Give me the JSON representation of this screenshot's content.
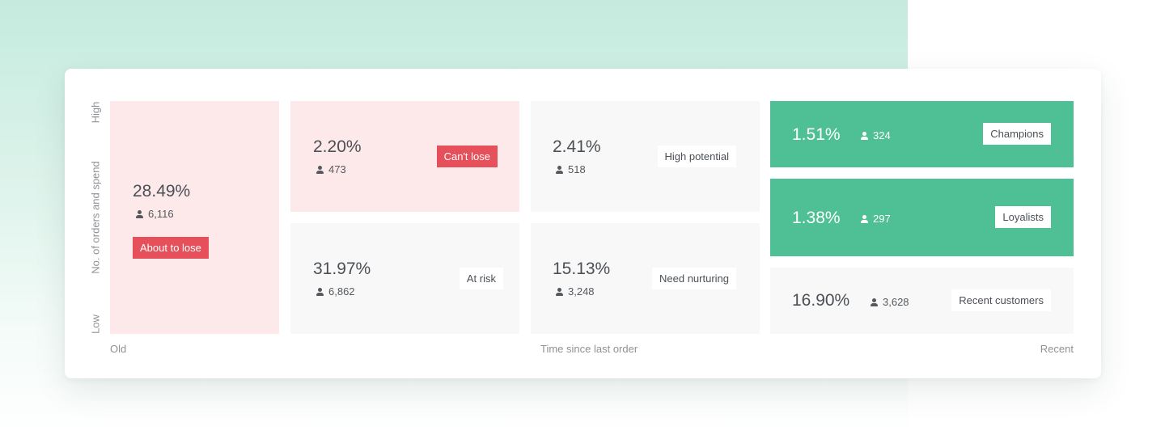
{
  "chart_data": {
    "type": "heatmap",
    "xlabel": "Time since last order",
    "x_min_label": "Old",
    "x_max_label": "Recent",
    "ylabel": "No. of orders and spend",
    "y_max_label": "High",
    "y_min_label": "Low",
    "segments": [
      {
        "name": "About to lose",
        "percent": "28.49%",
        "customers": "6,116",
        "color": "#fde9ea",
        "label_color": "#e6505a"
      },
      {
        "name": "Can't lose",
        "percent": "2.20%",
        "customers": "473",
        "color": "#fde9ea",
        "label_color": "#e6505a"
      },
      {
        "name": "At risk",
        "percent": "31.97%",
        "customers": "6,862",
        "color": "#f8f8f8",
        "label_color": "#ffffff"
      },
      {
        "name": "High potential",
        "percent": "2.41%",
        "customers": "518",
        "color": "#f8f8f8",
        "label_color": "#ffffff"
      },
      {
        "name": "Need nurturing",
        "percent": "15.13%",
        "customers": "3,248",
        "color": "#f8f8f8",
        "label_color": "#ffffff"
      },
      {
        "name": "Champions",
        "percent": "1.51%",
        "customers": "324",
        "color": "#4fc095",
        "label_color": "#ffffff"
      },
      {
        "name": "Loyalists",
        "percent": "1.38%",
        "customers": "297",
        "color": "#4fc095",
        "label_color": "#ffffff"
      },
      {
        "name": "Recent customers",
        "percent": "16.90%",
        "customers": "3,628",
        "color": "#f8f8f8",
        "label_color": "#ffffff"
      }
    ]
  }
}
